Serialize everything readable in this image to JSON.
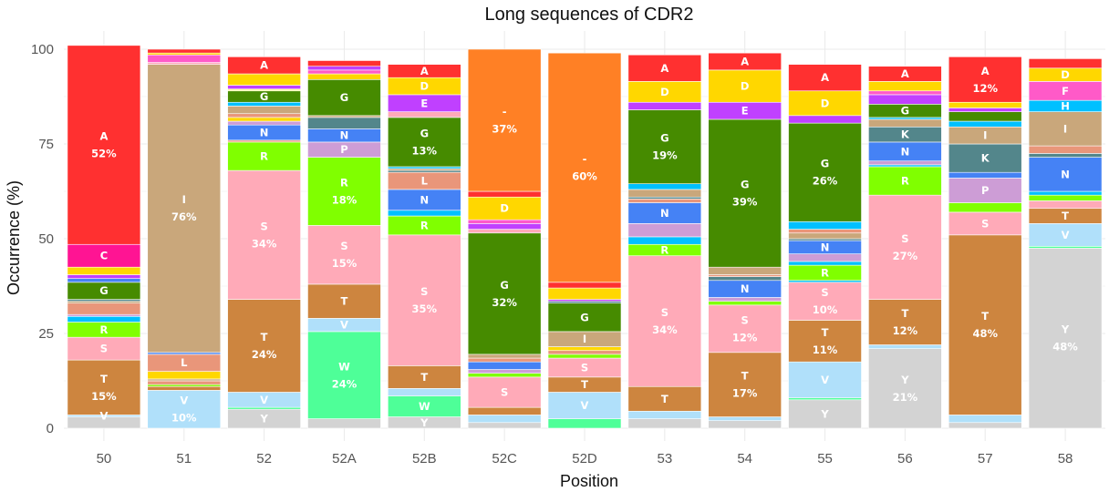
{
  "chart_data": {
    "type": "bar",
    "stacked": true,
    "title": "Long sequences of CDR2",
    "xlabel": "Position",
    "ylabel": "Occurrence (%)",
    "ylim": [
      0,
      100
    ],
    "yticks": [
      0,
      25,
      50,
      75,
      100
    ],
    "grid": true,
    "legend": "none",
    "categories": [
      "50",
      "51",
      "52",
      "52A",
      "52B",
      "52C",
      "52D",
      "53",
      "54",
      "55",
      "56",
      "57",
      "58"
    ],
    "colors": {
      "Y": "#d3d3d3",
      "W": "#4eff98",
      "V": "#b0e0fa",
      "T": "#cd853f",
      "S": "#ffaab8",
      "R": "#80ff00",
      "Q": "#ffff99",
      "P": "#cd9dd6",
      "N": "#4582f5",
      "M": "#e0e000",
      "L": "#e9967a",
      "K": "#53868b",
      "I": "#c9a77b",
      "H": "#00c0ff",
      "G": "#468b00",
      "F": "#ff5ac8",
      "E": "#c040ff",
      "D": "#ffd700",
      "C": "#ff1493",
      "A": "#ff3030",
      "-": "#ff8025"
    },
    "stacks": [
      {
        "position": "50",
        "segments": [
          [
            "Y",
            3
          ],
          [
            "V",
            0.5
          ],
          [
            "T",
            14.5
          ],
          [
            "S",
            6
          ],
          [
            "R",
            4
          ],
          [
            "H",
            1.5
          ],
          [
            "P",
            0.5
          ],
          [
            "L",
            3
          ],
          [
            "I",
            0.5
          ],
          [
            "K",
            0.5
          ],
          [
            "G",
            4.5
          ],
          [
            "N",
            1
          ],
          [
            "E",
            1
          ],
          [
            "D",
            2
          ],
          [
            "C",
            6
          ],
          [
            "A",
            52.5
          ]
        ],
        "labels": {
          "V": "V",
          "T": "T\n15%",
          "S": "S",
          "R": "R",
          "G": "G",
          "C": "C",
          "A": "A\n52%"
        }
      },
      {
        "position": "51",
        "segments": [
          [
            "V",
            10
          ],
          [
            "T",
            1
          ],
          [
            "R",
            0.5
          ],
          [
            "L",
            1
          ],
          [
            "I",
            0.5
          ],
          [
            "D",
            2
          ],
          [
            "L",
            4.5
          ],
          [
            "N",
            0.5
          ],
          [
            "I",
            76
          ],
          [
            "S",
            0.5
          ],
          [
            "F",
            2
          ],
          [
            "D",
            0.5
          ],
          [
            "A",
            1
          ]
        ],
        "labels": {
          "V": "V\n10%",
          "L": "L",
          "I": "I\n76%"
        }
      },
      {
        "position": "52",
        "segments": [
          [
            "Y",
            5
          ],
          [
            "W",
            0.5
          ],
          [
            "V",
            4
          ],
          [
            "T",
            24.5
          ],
          [
            "S",
            34
          ],
          [
            "R",
            7.5
          ],
          [
            "L",
            0.5
          ],
          [
            "N",
            4
          ],
          [
            "P",
            1
          ],
          [
            "D",
            1
          ],
          [
            "L",
            1
          ],
          [
            "I",
            2
          ],
          [
            "H",
            1
          ],
          [
            "G",
            3
          ],
          [
            "Q",
            0.5
          ],
          [
            "E",
            1
          ],
          [
            "D",
            3
          ],
          [
            "A",
            4.5
          ]
        ],
        "labels": {
          "Y": "Y",
          "V": "V",
          "T": "T\n24%",
          "S": "S\n34%",
          "R": "R",
          "N": "N",
          "G": "G",
          "A": "A"
        }
      },
      {
        "position": "52A",
        "segments": [
          [
            "Y",
            2.5
          ],
          [
            "W",
            23
          ],
          [
            "V",
            3.5
          ],
          [
            "T",
            9
          ],
          [
            "S",
            15.5
          ],
          [
            "R",
            18
          ],
          [
            "P",
            4
          ],
          [
            "N",
            3.5
          ],
          [
            "K",
            3
          ],
          [
            "I",
            0.5
          ],
          [
            "G",
            9.5
          ],
          [
            "D",
            1.5
          ],
          [
            "F",
            1
          ],
          [
            "E",
            1
          ],
          [
            "A",
            1.5
          ]
        ],
        "labels": {
          "W": "W\n24%",
          "V": "V",
          "T": "T",
          "S": "S\n15%",
          "R": "R\n18%",
          "P": "P",
          "N": "N",
          "G": "G"
        }
      },
      {
        "position": "52B",
        "segments": [
          [
            "Y",
            3
          ],
          [
            "W",
            5.5
          ],
          [
            "V",
            2
          ],
          [
            "T",
            6
          ],
          [
            "S",
            34.5
          ],
          [
            "R",
            5
          ],
          [
            "H",
            1.5
          ],
          [
            "N",
            5.5
          ],
          [
            "L",
            4.5
          ],
          [
            "K",
            0.5
          ],
          [
            "I",
            0.5
          ],
          [
            "H",
            0.5
          ],
          [
            "G",
            13
          ],
          [
            "S",
            1.5
          ],
          [
            "E",
            4.5
          ],
          [
            "D",
            4.5
          ],
          [
            "A",
            3.5
          ]
        ],
        "labels": {
          "Y": "Y",
          "W": "W",
          "T": "T",
          "S": "S\n35%",
          "R": "R",
          "N": "N",
          "L": "L",
          "G": "G\n13%",
          "E": "E",
          "D": "D",
          "A": "A"
        }
      },
      {
        "position": "52C",
        "segments": [
          [
            "Y",
            1.5
          ],
          [
            "V",
            2
          ],
          [
            "T",
            2
          ],
          [
            "S",
            8
          ],
          [
            "R",
            1
          ],
          [
            "P",
            1
          ],
          [
            "N",
            2
          ],
          [
            "L",
            1
          ],
          [
            "I",
            1
          ],
          [
            "G",
            32
          ],
          [
            "S",
            1
          ],
          [
            "E",
            1.5
          ],
          [
            "F",
            1
          ],
          [
            "D",
            6
          ],
          [
            "A",
            1.5
          ],
          [
            "-",
            37.5
          ]
        ],
        "labels": {
          "S": "S",
          "G": "G\n32%",
          "D": "D",
          "-": "-\n37%"
        }
      },
      {
        "position": "52D",
        "segments": [
          [
            "W",
            2.5
          ],
          [
            "V",
            7
          ],
          [
            "T",
            4
          ],
          [
            "S",
            5
          ],
          [
            "R",
            1
          ],
          [
            "L",
            1
          ],
          [
            "D",
            1
          ],
          [
            "I",
            4
          ],
          [
            "G",
            7.5
          ],
          [
            "K",
            0.5
          ],
          [
            "E",
            0.5
          ],
          [
            "D",
            3
          ],
          [
            "A",
            1.5
          ],
          [
            "-",
            60.5
          ]
        ],
        "labels": {
          "V": "V",
          "T": "T",
          "S": "S",
          "I": "I",
          "G": "G",
          "-": "-\n60%"
        }
      },
      {
        "position": "53",
        "segments": [
          [
            "Y",
            2.5
          ],
          [
            "V",
            2
          ],
          [
            "T",
            6.5
          ],
          [
            "S",
            34.5
          ],
          [
            "R",
            3
          ],
          [
            "H",
            2
          ],
          [
            "P",
            3.5
          ],
          [
            "N",
            5.5
          ],
          [
            "L",
            1
          ],
          [
            "K",
            0.5
          ],
          [
            "I",
            2
          ],
          [
            "H",
            1.5
          ],
          [
            "G",
            19.5
          ],
          [
            "E",
            2
          ],
          [
            "D",
            5.5
          ],
          [
            "A",
            7
          ]
        ],
        "labels": {
          "T": "T",
          "S": "S\n34%",
          "R": "R",
          "N": "N",
          "G": "G\n19%",
          "D": "D",
          "A": "A"
        }
      },
      {
        "position": "54",
        "segments": [
          [
            "Y",
            2
          ],
          [
            "V",
            1
          ],
          [
            "T",
            17
          ],
          [
            "S",
            12.5
          ],
          [
            "R",
            1
          ],
          [
            "P",
            1
          ],
          [
            "N",
            4.5
          ],
          [
            "K",
            1
          ],
          [
            "L",
            0.5
          ],
          [
            "I",
            2
          ],
          [
            "G",
            39
          ],
          [
            "E",
            4.5
          ],
          [
            "D",
            8.5
          ],
          [
            "A",
            4.5
          ]
        ],
        "labels": {
          "T": "T\n17%",
          "S": "S\n12%",
          "N": "N",
          "G": "G\n39%",
          "E": "E",
          "D": "D",
          "A": "A"
        }
      },
      {
        "position": "55",
        "segments": [
          [
            "Y",
            7.5
          ],
          [
            "W",
            0.5
          ],
          [
            "V",
            9.5
          ],
          [
            "T",
            11
          ],
          [
            "S",
            10
          ],
          [
            "H",
            0.5
          ],
          [
            "R",
            4
          ],
          [
            "H",
            1
          ],
          [
            "P",
            2
          ],
          [
            "N",
            3.5
          ],
          [
            "K",
            0.5
          ],
          [
            "I",
            1.5
          ],
          [
            "L",
            1
          ],
          [
            "H",
            2
          ],
          [
            "G",
            26
          ],
          [
            "E",
            2
          ],
          [
            "D",
            6.5
          ],
          [
            "A",
            7
          ]
        ],
        "labels": {
          "Y": "Y",
          "V": "V",
          "T": "T\n11%",
          "S": "S\n10%",
          "R": "R",
          "N": "N",
          "G": "G\n26%",
          "D": "D",
          "A": "A"
        }
      },
      {
        "position": "56",
        "segments": [
          [
            "Y",
            21
          ],
          [
            "V",
            1
          ],
          [
            "T",
            12
          ],
          [
            "S",
            27.5
          ],
          [
            "R",
            7.5
          ],
          [
            "H",
            0.5
          ],
          [
            "P",
            1
          ],
          [
            "N",
            5
          ],
          [
            "K",
            4
          ],
          [
            "I",
            2
          ],
          [
            "H",
            0.5
          ],
          [
            "G",
            3.5
          ],
          [
            "E",
            2.5
          ],
          [
            "F",
            1
          ],
          [
            "D",
            2.5
          ],
          [
            "A",
            4
          ]
        ],
        "labels": {
          "Y": "Y\n21%",
          "T": "T\n12%",
          "S": "S\n27%",
          "R": "R",
          "N": "N",
          "K": "K",
          "G": "G",
          "A": "A"
        }
      },
      {
        "position": "57",
        "segments": [
          [
            "Y",
            1.5
          ],
          [
            "V",
            2
          ],
          [
            "T",
            47.5
          ],
          [
            "S",
            6
          ],
          [
            "R",
            2.5
          ],
          [
            "P",
            6.5
          ],
          [
            "N",
            1.5
          ],
          [
            "K",
            7.5
          ],
          [
            "I",
            4.5
          ],
          [
            "H",
            1.5
          ],
          [
            "G",
            2.5
          ],
          [
            "E",
            1
          ],
          [
            "D",
            1.5
          ],
          [
            "A",
            12
          ]
        ],
        "labels": {
          "T": "T\n48%",
          "S": "S",
          "P": "P",
          "K": "K",
          "I": "I",
          "A": "A\n12%"
        }
      },
      {
        "position": "58",
        "segments": [
          [
            "Y",
            47.5
          ],
          [
            "W",
            0.5
          ],
          [
            "V",
            6
          ],
          [
            "T",
            4
          ],
          [
            "S",
            2
          ],
          [
            "R",
            1.5
          ],
          [
            "H",
            1
          ],
          [
            "N",
            9
          ],
          [
            "K",
            1
          ],
          [
            "L",
            2
          ],
          [
            "I",
            9
          ],
          [
            "H",
            3
          ],
          [
            "F",
            5
          ],
          [
            "D",
            3.5
          ],
          [
            "A",
            2.5
          ]
        ],
        "labels": {
          "Y": "Y\n48%",
          "V": "V",
          "T": "T",
          "N": "N",
          "I": "I",
          "H": "H",
          "F": "F",
          "D": "D"
        }
      }
    ]
  }
}
